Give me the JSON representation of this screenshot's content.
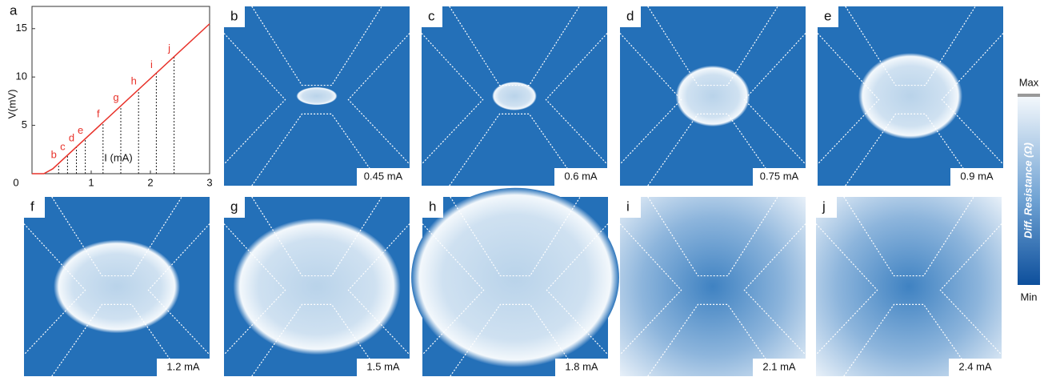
{
  "chart_data": {
    "type": "line",
    "panel_label": "a",
    "x_label": "I (mA)",
    "y_label": "V(mV)",
    "x": [
      0,
      0.2,
      0.35,
      3
    ],
    "series": [
      {
        "color": "#e8322a",
        "values": [
          0,
          0,
          0.5,
          15.5
        ]
      }
    ],
    "xlim": [
      0,
      3
    ],
    "ylim": [
      0,
      17.3
    ],
    "xticks": [
      0,
      1,
      2,
      3
    ],
    "yticks": [
      0,
      5,
      10,
      15
    ],
    "markers": [
      {
        "label": "b",
        "x": 0.45,
        "y": 1.07
      },
      {
        "label": "c",
        "x": 0.6,
        "y": 1.9
      },
      {
        "label": "d",
        "x": 0.75,
        "y": 2.8
      },
      {
        "label": "e",
        "x": 0.9,
        "y": 3.6
      },
      {
        "label": "f",
        "x": 1.2,
        "y": 5.3
      },
      {
        "label": "g",
        "x": 1.5,
        "y": 7.0
      },
      {
        "label": "h",
        "x": 1.8,
        "y": 8.7
      },
      {
        "label": "i",
        "x": 2.1,
        "y": 10.4
      },
      {
        "label": "j",
        "x": 2.4,
        "y": 12.1
      }
    ]
  },
  "panels": [
    {
      "label": "b",
      "current": "0.45 mA"
    },
    {
      "label": "c",
      "current": "0.6 mA"
    },
    {
      "label": "d",
      "current": "0.75 mA"
    },
    {
      "label": "e",
      "current": "0.9 mA"
    },
    {
      "label": "f",
      "current": "1.2 mA"
    },
    {
      "label": "g",
      "current": "1.5 mA"
    },
    {
      "label": "h",
      "current": "1.8 mA"
    },
    {
      "label": "i",
      "current": "2.1 mA"
    },
    {
      "label": "j",
      "current": "2.4 mA"
    }
  ],
  "colorbar": {
    "title": "Diff. Resistance (Ω)",
    "max": "Max",
    "min": "Min"
  }
}
